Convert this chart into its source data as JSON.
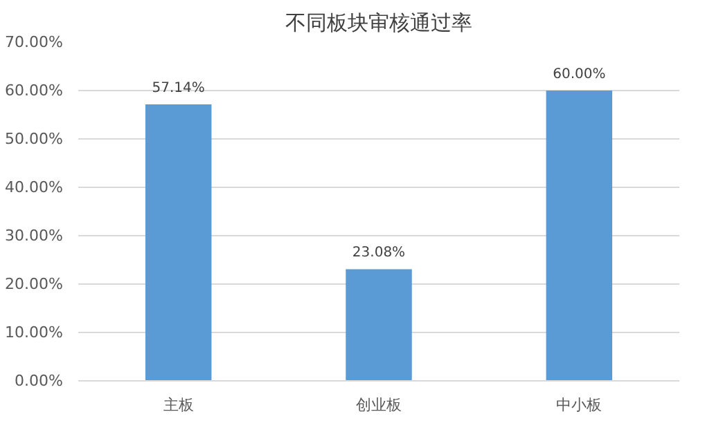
{
  "chart_data": {
    "type": "bar",
    "title": "不同板块审核通过率",
    "categories": [
      "主板",
      "创业板",
      "中小板"
    ],
    "values": [
      57.14,
      23.08,
      60.0
    ],
    "value_labels": [
      "57.14%",
      "23.08%",
      "60.00%"
    ],
    "color": "#5b9bd5",
    "ylim": [
      0,
      70
    ],
    "yticks": [
      {
        "value": 0,
        "label": "0.00%"
      },
      {
        "value": 10,
        "label": "10.00%"
      },
      {
        "value": 20,
        "label": "20.00%"
      },
      {
        "value": 30,
        "label": "30.00%"
      },
      {
        "value": 40,
        "label": "40.00%"
      },
      {
        "value": 50,
        "label": "50.00%"
      },
      {
        "value": 60,
        "label": "60.00%"
      },
      {
        "value": 70,
        "label": "70.00%"
      }
    ],
    "grid": "y"
  }
}
